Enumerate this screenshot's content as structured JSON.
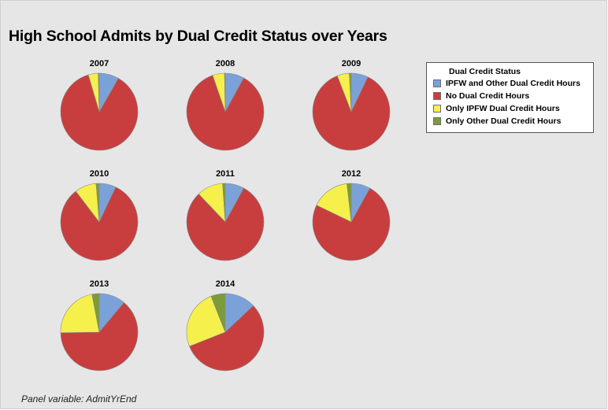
{
  "title": "High School Admits by Dual Credit Status over Years",
  "footnote": "Panel variable: AdmitYrEnd",
  "chart_data": {
    "type": "pie",
    "panel_variable": "AdmitYrEnd",
    "legend": {
      "title": "Dual Credit Status",
      "placement": "right",
      "entries": [
        {
          "name": "IPFW and Other Dual Credit Hours",
          "color": "#7ba2d8"
        },
        {
          "name": "No Dual Credit Hours",
          "color": "#c83e3e"
        },
        {
          "name": "Only IPFW Dual Credit Hours",
          "color": "#f5f04c"
        },
        {
          "name": "Only Other Dual Credit Hours",
          "color": "#7d9b3a"
        }
      ]
    },
    "panels": [
      {
        "label": "2007",
        "values": [
          8,
          84,
          4,
          0.4
        ]
      },
      {
        "label": "2008",
        "values": [
          8,
          87,
          5,
          0.3
        ]
      },
      {
        "label": "2009",
        "values": [
          7,
          86,
          5,
          0.8
        ]
      },
      {
        "label": "2010",
        "values": [
          7,
          82,
          9,
          1.3
        ]
      },
      {
        "label": "2011",
        "values": [
          8,
          80,
          11,
          1.1
        ]
      },
      {
        "label": "2012",
        "values": [
          8,
          74,
          16,
          1.8
        ]
      },
      {
        "label": "2013",
        "values": [
          11,
          63,
          22,
          3
        ]
      },
      {
        "label": "2014",
        "values": [
          13,
          56,
          25,
          6
        ]
      }
    ]
  }
}
